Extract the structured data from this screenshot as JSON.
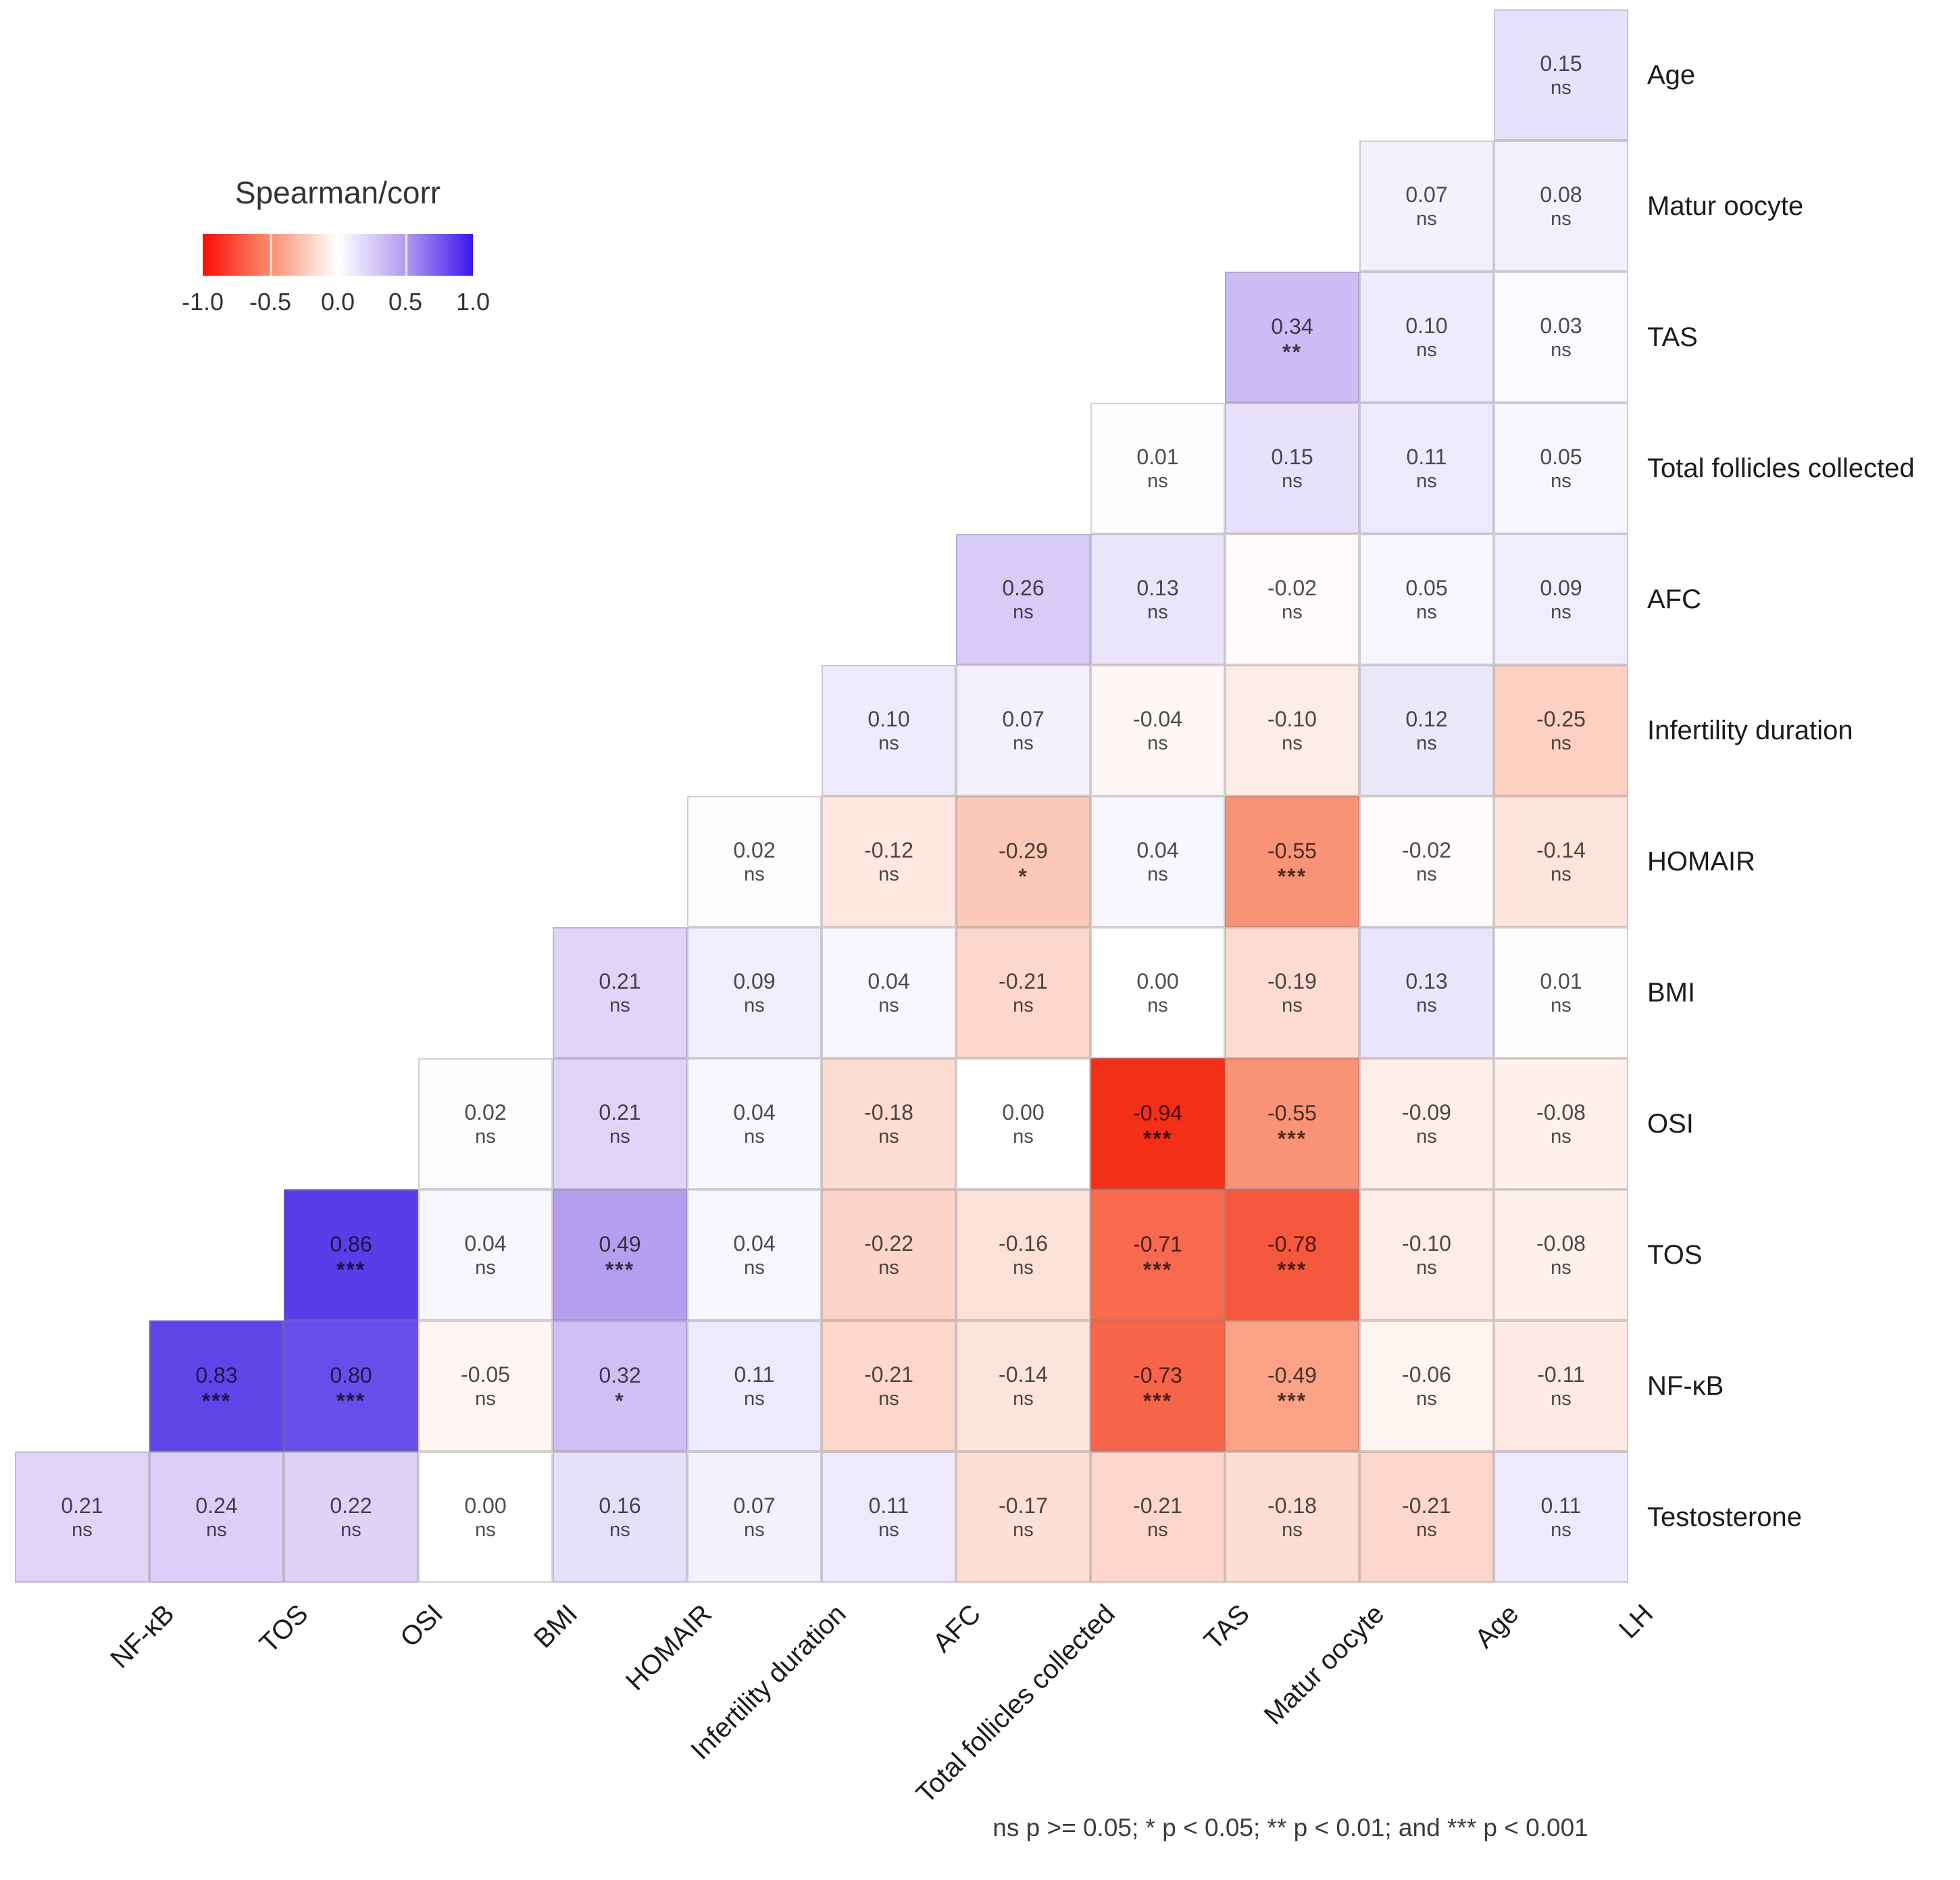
{
  "chart_data": {
    "type": "heatmap",
    "title": "Spearman/corr",
    "caption": "ns p >= 0.05; * p < 0.05; ** p < 0.01; and *** p < 0.001",
    "legend": {
      "title": "Spearman/corr",
      "tick_labels": [
        "-1.0",
        "-0.5",
        "0.0",
        "0.5",
        "1.0"
      ],
      "range": [
        -1.0,
        1.0
      ],
      "gradient_stops": [
        "#fa0f03",
        "#f98e71",
        "#ffffff",
        "#b29cf0",
        "#3b16ee"
      ],
      "color_negative": "#f22008",
      "color_zero": "#ffffff",
      "color_positive": "#3818e6"
    },
    "columns": [
      "NF-κB",
      "TOS",
      "OSI",
      "BMI",
      "HOMAIR",
      "Infertility duration",
      "AFC",
      "Total follicles collected",
      "TAS",
      "Matur oocyte",
      "Age",
      "LH"
    ],
    "rows": [
      "Age",
      "Matur oocyte",
      "TAS",
      "Total follicles collected",
      "AFC",
      "Infertility duration",
      "HOMAIR",
      "BMI",
      "OSI",
      "TOS",
      "NF-κB",
      "Testosterone"
    ],
    "matrix": [
      {
        "row": "Age",
        "cells": [
          {
            "col": "LH",
            "v": 0.15,
            "s": "ns"
          }
        ]
      },
      {
        "row": "Matur oocyte",
        "cells": [
          {
            "col": "Age",
            "v": 0.07,
            "s": "ns"
          },
          {
            "col": "LH",
            "v": 0.08,
            "s": "ns"
          }
        ]
      },
      {
        "row": "TAS",
        "cells": [
          {
            "col": "Matur oocyte",
            "v": 0.34,
            "s": "**"
          },
          {
            "col": "Age",
            "v": 0.1,
            "s": "ns"
          },
          {
            "col": "LH",
            "v": 0.03,
            "s": "ns"
          }
        ]
      },
      {
        "row": "Total follicles collected",
        "cells": [
          {
            "col": "TAS",
            "v": 0.01,
            "s": "ns"
          },
          {
            "col": "Matur oocyte",
            "v": 0.15,
            "s": "ns"
          },
          {
            "col": "Age",
            "v": 0.11,
            "s": "ns"
          },
          {
            "col": "LH",
            "v": 0.05,
            "s": "ns"
          }
        ]
      },
      {
        "row": "AFC",
        "cells": [
          {
            "col": "Total follicles collected",
            "v": 0.26,
            "s": "ns"
          },
          {
            "col": "TAS",
            "v": 0.13,
            "s": "ns"
          },
          {
            "col": "Matur oocyte",
            "v": -0.02,
            "s": "ns"
          },
          {
            "col": "Age",
            "v": 0.05,
            "s": "ns"
          },
          {
            "col": "LH",
            "v": 0.09,
            "s": "ns"
          }
        ]
      },
      {
        "row": "Infertility duration",
        "cells": [
          {
            "col": "AFC",
            "v": 0.1,
            "s": "ns"
          },
          {
            "col": "Total follicles collected",
            "v": 0.07,
            "s": "ns"
          },
          {
            "col": "TAS",
            "v": -0.04,
            "s": "ns"
          },
          {
            "col": "Matur oocyte",
            "v": -0.1,
            "s": "ns"
          },
          {
            "col": "Age",
            "v": 0.12,
            "s": "ns"
          },
          {
            "col": "LH",
            "v": -0.25,
            "s": "ns"
          }
        ]
      },
      {
        "row": "HOMAIR",
        "cells": [
          {
            "col": "Infertility duration",
            "v": 0.02,
            "s": "ns"
          },
          {
            "col": "AFC",
            "v": -0.12,
            "s": "ns"
          },
          {
            "col": "Total follicles collected",
            "v": -0.29,
            "s": "*"
          },
          {
            "col": "TAS",
            "v": 0.04,
            "s": "ns"
          },
          {
            "col": "Matur oocyte",
            "v": -0.55,
            "s": "***"
          },
          {
            "col": "Age",
            "v": -0.02,
            "s": "ns"
          },
          {
            "col": "LH",
            "v": -0.14,
            "s": "ns"
          }
        ]
      },
      {
        "row": "BMI",
        "cells": [
          {
            "col": "HOMAIR",
            "v": 0.21,
            "s": "ns"
          },
          {
            "col": "Infertility duration",
            "v": 0.09,
            "s": "ns"
          },
          {
            "col": "AFC",
            "v": 0.04,
            "s": "ns"
          },
          {
            "col": "Total follicles collected",
            "v": -0.21,
            "s": "ns"
          },
          {
            "col": "TAS",
            "v": 0.0,
            "s": "ns"
          },
          {
            "col": "Matur oocyte",
            "v": -0.19,
            "s": "ns"
          },
          {
            "col": "Age",
            "v": 0.13,
            "s": "ns"
          },
          {
            "col": "LH",
            "v": 0.01,
            "s": "ns"
          }
        ]
      },
      {
        "row": "OSI",
        "cells": [
          {
            "col": "BMI",
            "v": 0.02,
            "s": "ns"
          },
          {
            "col": "HOMAIR",
            "v": 0.21,
            "s": "ns"
          },
          {
            "col": "Infertility duration",
            "v": 0.04,
            "s": "ns"
          },
          {
            "col": "AFC",
            "v": -0.18,
            "s": "ns"
          },
          {
            "col": "Total follicles collected",
            "v": 0.0,
            "s": "ns"
          },
          {
            "col": "TAS",
            "v": -0.94,
            "s": "***"
          },
          {
            "col": "Matur oocyte",
            "v": -0.55,
            "s": "***"
          },
          {
            "col": "Age",
            "v": -0.09,
            "s": "ns"
          },
          {
            "col": "LH",
            "v": -0.08,
            "s": "ns"
          }
        ]
      },
      {
        "row": "TOS",
        "cells": [
          {
            "col": "OSI",
            "v": 0.86,
            "s": "***"
          },
          {
            "col": "BMI",
            "v": 0.04,
            "s": "ns"
          },
          {
            "col": "HOMAIR",
            "v": 0.49,
            "s": "***"
          },
          {
            "col": "Infertility duration",
            "v": 0.04,
            "s": "ns"
          },
          {
            "col": "AFC",
            "v": -0.22,
            "s": "ns"
          },
          {
            "col": "Total follicles collected",
            "v": -0.16,
            "s": "ns"
          },
          {
            "col": "TAS",
            "v": -0.71,
            "s": "***"
          },
          {
            "col": "Matur oocyte",
            "v": -0.78,
            "s": "***"
          },
          {
            "col": "Age",
            "v": -0.1,
            "s": "ns"
          },
          {
            "col": "LH",
            "v": -0.08,
            "s": "ns"
          }
        ]
      },
      {
        "row": "NF-κB",
        "cells": [
          {
            "col": "TOS",
            "v": 0.83,
            "s": "***"
          },
          {
            "col": "OSI",
            "v": 0.8,
            "s": "***"
          },
          {
            "col": "BMI",
            "v": -0.05,
            "s": "ns"
          },
          {
            "col": "HOMAIR",
            "v": 0.32,
            "s": "*"
          },
          {
            "col": "Infertility duration",
            "v": 0.11,
            "s": "ns"
          },
          {
            "col": "AFC",
            "v": -0.21,
            "s": "ns"
          },
          {
            "col": "Total follicles collected",
            "v": -0.14,
            "s": "ns"
          },
          {
            "col": "TAS",
            "v": -0.73,
            "s": "***"
          },
          {
            "col": "Matur oocyte",
            "v": -0.49,
            "s": "***"
          },
          {
            "col": "Age",
            "v": -0.06,
            "s": "ns"
          },
          {
            "col": "LH",
            "v": -0.11,
            "s": "ns"
          }
        ]
      },
      {
        "row": "Testosterone",
        "cells": [
          {
            "col": "NF-κB",
            "v": 0.21,
            "s": "ns"
          },
          {
            "col": "TOS",
            "v": 0.24,
            "s": "ns"
          },
          {
            "col": "OSI",
            "v": 0.22,
            "s": "ns"
          },
          {
            "col": "BMI",
            "v": 0.0,
            "s": "ns"
          },
          {
            "col": "HOMAIR",
            "v": 0.16,
            "s": "ns"
          },
          {
            "col": "Infertility duration",
            "v": 0.07,
            "s": "ns"
          },
          {
            "col": "AFC",
            "v": 0.11,
            "s": "ns"
          },
          {
            "col": "Total follicles collected",
            "v": -0.17,
            "s": "ns"
          },
          {
            "col": "TAS",
            "v": -0.21,
            "s": "ns"
          },
          {
            "col": "Matur oocyte",
            "v": -0.18,
            "s": "ns"
          },
          {
            "col": "Age",
            "v": -0.21,
            "s": "ns"
          },
          {
            "col": "LH",
            "v": 0.11,
            "s": "ns"
          }
        ]
      }
    ]
  }
}
